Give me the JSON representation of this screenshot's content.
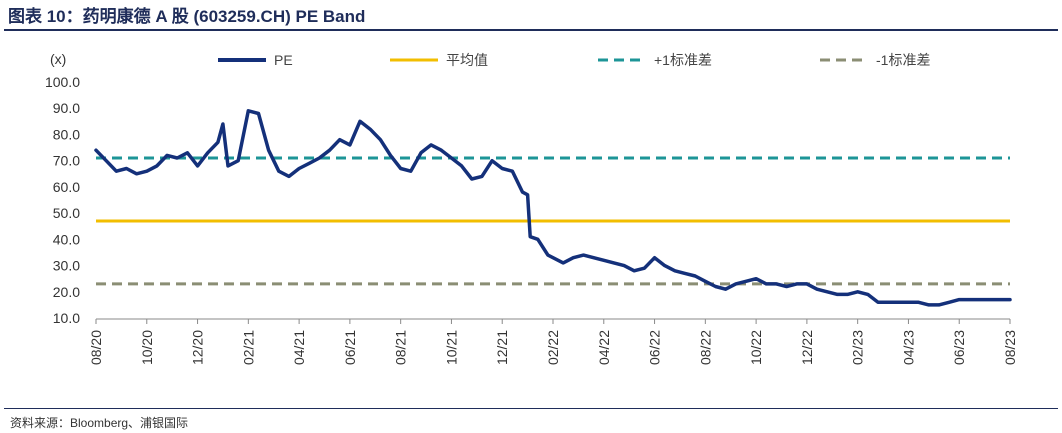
{
  "header": {
    "title": "图表 10：药明康德 A 股 (603259.CH) PE Band"
  },
  "footer": {
    "source": "资料来源：Bloomberg、浦银国际"
  },
  "colors": {
    "pe": "#14307a",
    "mean": "#f2be00",
    "plus1sd": "#1d9597",
    "minus1sd": "#8b8e74",
    "rule": "#1f2d5a"
  },
  "chart_data": {
    "type": "line",
    "unit_label": "(x)",
    "ylim": [
      10,
      100
    ],
    "yticks": [
      "10.0",
      "20.0",
      "30.0",
      "40.0",
      "50.0",
      "60.0",
      "70.0",
      "80.0",
      "90.0",
      "100.0"
    ],
    "xticks": [
      "08/20",
      "10/20",
      "12/20",
      "02/21",
      "04/21",
      "06/21",
      "08/21",
      "10/21",
      "12/21",
      "02/22",
      "04/22",
      "06/22",
      "08/22",
      "10/22",
      "12/22",
      "02/23",
      "04/23",
      "06/23",
      "08/23"
    ],
    "grid": false,
    "legend_position": "top",
    "series": [
      {
        "name": "PE",
        "style": "solid",
        "x": [
          0,
          0.2,
          0.4,
          0.6,
          0.8,
          1.0,
          1.2,
          1.4,
          1.6,
          1.8,
          2.0,
          2.2,
          2.4,
          2.5,
          2.6,
          2.8,
          3.0,
          3.2,
          3.4,
          3.6,
          3.8,
          4.0,
          4.2,
          4.4,
          4.6,
          4.8,
          5.0,
          5.2,
          5.4,
          5.6,
          5.8,
          6.0,
          6.2,
          6.4,
          6.6,
          6.8,
          7.0,
          7.2,
          7.4,
          7.6,
          7.8,
          8.0,
          8.2,
          8.4,
          8.5,
          8.55,
          8.7,
          8.9,
          9.0,
          9.2,
          9.4,
          9.6,
          9.8,
          10.0,
          10.2,
          10.4,
          10.6,
          10.8,
          11.0,
          11.2,
          11.4,
          11.6,
          11.8,
          12.0,
          12.2,
          12.4,
          12.6,
          12.8,
          13.0,
          13.2,
          13.4,
          13.6,
          13.8,
          14.0,
          14.2,
          14.4,
          14.6,
          14.8,
          15.0,
          15.2,
          15.4,
          15.6,
          15.8,
          16.0,
          16.2,
          16.4,
          16.6,
          16.8,
          17.0,
          17.2,
          17.4,
          17.6,
          17.8,
          18.0
        ],
        "values": [
          74,
          70,
          66,
          67,
          65,
          66,
          68,
          72,
          71,
          73,
          68,
          73,
          77,
          84,
          68,
          70,
          89,
          88,
          74,
          66,
          64,
          67,
          69,
          71,
          74,
          78,
          76,
          85,
          82,
          78,
          72,
          67,
          66,
          73,
          76,
          74,
          71,
          68,
          63,
          64,
          70,
          67,
          66,
          58,
          57,
          41,
          40,
          34,
          33,
          31,
          33,
          34,
          33,
          32,
          31,
          30,
          28,
          29,
          33,
          30,
          28,
          27,
          26,
          24,
          22,
          21,
          23,
          24,
          25,
          23,
          23,
          22,
          23,
          23,
          21,
          20,
          19,
          19,
          20,
          19,
          16,
          16,
          16,
          16,
          16,
          15,
          15,
          16,
          17,
          17,
          17,
          17,
          17,
          17
        ]
      },
      {
        "name": "平均值",
        "style": "solid",
        "constant": 47
      },
      {
        "name": "+1标准差",
        "style": "dashed",
        "constant": 71
      },
      {
        "name": "-1标准差",
        "style": "dashed",
        "constant": 23
      }
    ]
  }
}
